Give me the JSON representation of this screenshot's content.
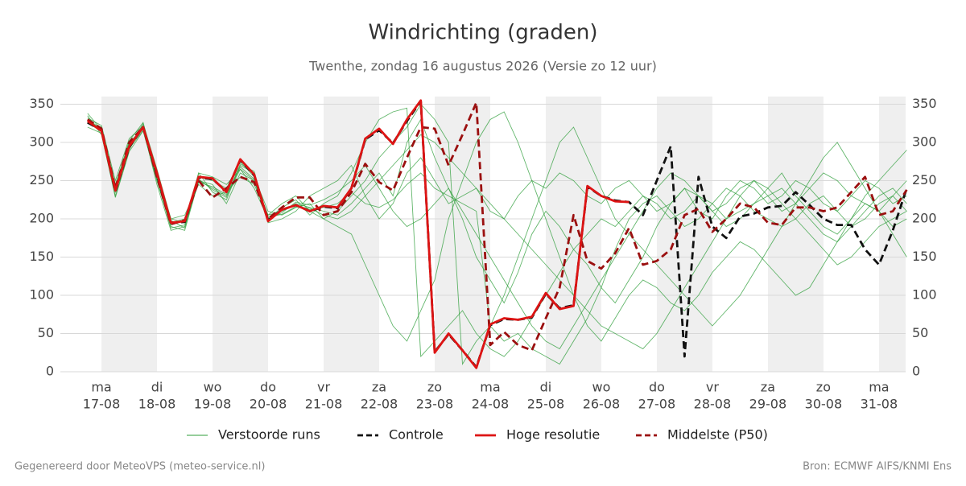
{
  "chart_data": {
    "type": "line",
    "title": "Windrichting (graden)",
    "subtitle": "Twenthe, zondag 16 augustus 2026 (Versie zo 12 uur)",
    "footer_left": "Gegenereerd door MeteoVPS (meteo-service.nl)",
    "footer_right": "Bron: ECMWF AIFS/KNMI Ens",
    "xlim": [
      -0.74,
      14.48
    ],
    "ylim": [
      0,
      360
    ],
    "yticks": [
      0,
      50,
      100,
      150,
      200,
      250,
      300,
      350
    ],
    "grid": true,
    "shade_alternate_days": true,
    "xticks": [
      {
        "value": 0,
        "label": [
          "ma",
          "17-08"
        ]
      },
      {
        "value": 1,
        "label": [
          "di",
          "18-08"
        ]
      },
      {
        "value": 2,
        "label": [
          "wo",
          "19-08"
        ]
      },
      {
        "value": 3,
        "label": [
          "do",
          "20-08"
        ]
      },
      {
        "value": 4,
        "label": [
          "vr",
          "21-08"
        ]
      },
      {
        "value": 5,
        "label": [
          "za",
          "22-08"
        ]
      },
      {
        "value": 6,
        "label": [
          "zo",
          "23-08"
        ]
      },
      {
        "value": 7,
        "label": [
          "ma",
          "24-08"
        ]
      },
      {
        "value": 8,
        "label": [
          "di",
          "25-08"
        ]
      },
      {
        "value": 9,
        "label": [
          "wo",
          "26-08"
        ]
      },
      {
        "value": 10,
        "label": [
          "do",
          "27-08"
        ]
      },
      {
        "value": 11,
        "label": [
          "vr",
          "28-08"
        ]
      },
      {
        "value": 12,
        "label": [
          "za",
          "29-08"
        ]
      },
      {
        "value": 13,
        "label": [
          "zo",
          "30-08"
        ]
      },
      {
        "value": 14,
        "label": [
          "ma",
          "31-08"
        ]
      }
    ],
    "x": [
      -0.25,
      0,
      0.25,
      0.5,
      0.75,
      1,
      1.25,
      1.5,
      1.75,
      2,
      2.25,
      2.5,
      2.75,
      3,
      3.25,
      3.5,
      3.75,
      4,
      4.25,
      4.5,
      4.75,
      5,
      5.25,
      5.5,
      5.75,
      6,
      6.25,
      6.5,
      6.75,
      7,
      7.25,
      7.5,
      7.75,
      8,
      8.25,
      8.5,
      8.75,
      9,
      9.25,
      9.5,
      9.75,
      10,
      10.25,
      10.5,
      10.75,
      11,
      11.25,
      11.5,
      11.75,
      12,
      12.25,
      12.5,
      12.75,
      13,
      13.25,
      13.5,
      13.75,
      14,
      14.25,
      14.5
    ],
    "legend": "bottom",
    "ensemble": {
      "name": "Verstoorde runs",
      "color": "#2e9e3a",
      "runs": [
        [
          325,
          320,
          245,
          300,
          318,
          250,
          190,
          185,
          250,
          240,
          230,
          265,
          250,
          205,
          210,
          220,
          215,
          210,
          205,
          220,
          240,
          260,
          230,
          300,
          330,
          280,
          240,
          200,
          150,
          120,
          90,
          130,
          180,
          210,
          190,
          160,
          140,
          110,
          90,
          120,
          150,
          190,
          220,
          240,
          210,
          200,
          230,
          250,
          240,
          220,
          230,
          250,
          240,
          220,
          210,
          230,
          250,
          240,
          220,
          230
        ],
        [
          335,
          310,
          230,
          290,
          325,
          265,
          200,
          195,
          260,
          235,
          225,
          270,
          260,
          200,
          215,
          225,
          205,
          220,
          230,
          260,
          300,
          330,
          340,
          345,
          20,
          40,
          60,
          80,
          50,
          30,
          20,
          40,
          70,
          100,
          130,
          160,
          180,
          200,
          190,
          210,
          230,
          220,
          200,
          210,
          230,
          220,
          200,
          210,
          220,
          240,
          260,
          230,
          210,
          190,
          180,
          200,
          220,
          210,
          190,
          200
        ],
        [
          330,
          318,
          240,
          298,
          320,
          255,
          195,
          200,
          255,
          250,
          240,
          275,
          255,
          210,
          205,
          215,
          220,
          200,
          190,
          180,
          140,
          100,
          60,
          40,
          80,
          120,
          200,
          250,
          300,
          330,
          340,
          300,
          250,
          200,
          150,
          100,
          60,
          40,
          70,
          100,
          120,
          110,
          90,
          80,
          100,
          130,
          150,
          170,
          160,
          140,
          120,
          100,
          110,
          140,
          170,
          200,
          230,
          250,
          270,
          290
        ],
        [
          328,
          315,
          235,
          295,
          318,
          245,
          185,
          190,
          250,
          245,
          220,
          260,
          250,
          195,
          200,
          210,
          230,
          240,
          250,
          270,
          230,
          200,
          220,
          260,
          280,
          250,
          220,
          230,
          240,
          210,
          200,
          230,
          250,
          240,
          260,
          250,
          230,
          220,
          240,
          250,
          230,
          210,
          220,
          240,
          230,
          210,
          220,
          240,
          250,
          230,
          210,
          220,
          240,
          260,
          250,
          230,
          220,
          210,
          230,
          250
        ],
        [
          332,
          322,
          250,
          305,
          322,
          260,
          200,
          205,
          245,
          230,
          235,
          255,
          245,
          205,
          220,
          230,
          210,
          200,
          210,
          230,
          250,
          280,
          300,
          320,
          350,
          330,
          300,
          10,
          40,
          60,
          100,
          150,
          200,
          250,
          300,
          320,
          280,
          240,
          200,
          180,
          160,
          140,
          120,
          100,
          80,
          60,
          80,
          100,
          130,
          160,
          190,
          220,
          250,
          280,
          300,
          270,
          240,
          210,
          180,
          150
        ],
        [
          320,
          312,
          228,
          288,
          315,
          250,
          192,
          198,
          260,
          255,
          245,
          265,
          240,
          200,
          208,
          222,
          218,
          225,
          235,
          250,
          270,
          240,
          210,
          190,
          200,
          220,
          240,
          210,
          180,
          150,
          120,
          90,
          60,
          40,
          30,
          60,
          90,
          120,
          150,
          180,
          210,
          240,
          260,
          250,
          230,
          210,
          190,
          200,
          220,
          230,
          240,
          220,
          200,
          180,
          170,
          190,
          210,
          230,
          240,
          220
        ],
        [
          338,
          316,
          242,
          302,
          326,
          258,
          198,
          188,
          252,
          238,
          228,
          272,
          262,
          198,
          212,
          218,
          212,
          215,
          220,
          235,
          220,
          215,
          225,
          245,
          260,
          240,
          230,
          220,
          210,
          60,
          40,
          50,
          30,
          20,
          10,
          40,
          70,
          110,
          160,
          200,
          220,
          230,
          210,
          190,
          200,
          220,
          240,
          230,
          210,
          200,
          190,
          200,
          220,
          230,
          210,
          190,
          200,
          220,
          230,
          210
        ],
        [
          326,
          314,
          238,
          292,
          316,
          252,
          188,
          192,
          248,
          242,
          232,
          268,
          252,
          202,
          206,
          216,
          214,
          205,
          200,
          210,
          230,
          250,
          270,
          290,
          310,
          300,
          280,
          260,
          240,
          220,
          200,
          180,
          160,
          140,
          120,
          100,
          80,
          60,
          50,
          40,
          30,
          50,
          80,
          110,
          140,
          170,
          200,
          230,
          250,
          240,
          220,
          200,
          180,
          160,
          140,
          150,
          170,
          190,
          200,
          210
        ]
      ]
    },
    "series": [
      {
        "name": "Controle",
        "color": "#111111",
        "dash": true,
        "values": [
          326,
          316,
          236,
          294,
          320,
          258,
          195,
          196,
          254,
          252,
          236,
          277,
          257,
          198,
          212,
          218,
          210,
          216,
          214,
          240,
          304,
          316,
          299,
          328,
          354,
          26,
          49,
          28,
          6,
          61,
          69,
          68,
          71,
          102,
          83,
          87,
          242,
          230,
          224,
          222,
          205,
          250,
          295,
          20,
          255,
          190,
          175,
          203,
          207,
          215,
          217,
          235,
          218,
          200,
          192,
          192,
          160,
          140,
          185,
          240
        ]
      },
      {
        "name": "Hoge resolutie",
        "color": "#dd1414",
        "dash": false,
        "values": [
          328,
          315,
          237,
          295,
          320,
          260,
          195,
          197,
          255,
          253,
          235,
          278,
          258,
          197,
          212,
          218,
          210,
          217,
          215,
          240,
          305,
          318,
          298,
          330,
          355,
          25,
          50,
          28,
          5,
          62,
          70,
          68,
          72,
          103,
          82,
          86,
          243,
          230,
          223,
          222,
          null,
          null,
          null,
          null,
          null,
          null,
          null,
          null,
          null,
          null,
          null,
          null,
          null,
          null,
          null,
          null,
          null,
          null,
          null,
          null
        ]
      },
      {
        "name": "Middelste (P50)",
        "color": "#9b1010",
        "dash": true,
        "values": [
          330,
          318,
          240,
          300,
          320,
          255,
          193,
          198,
          250,
          228,
          240,
          255,
          248,
          200,
          215,
          228,
          228,
          205,
          210,
          235,
          272,
          248,
          237,
          280,
          320,
          318,
          270,
          310,
          352,
          35,
          52,
          35,
          28,
          70,
          110,
          205,
          145,
          135,
          155,
          188,
          140,
          145,
          160,
          205,
          213,
          183,
          200,
          220,
          215,
          195,
          192,
          215,
          215,
          210,
          215,
          235,
          255,
          205,
          210,
          238
        ]
      }
    ]
  }
}
